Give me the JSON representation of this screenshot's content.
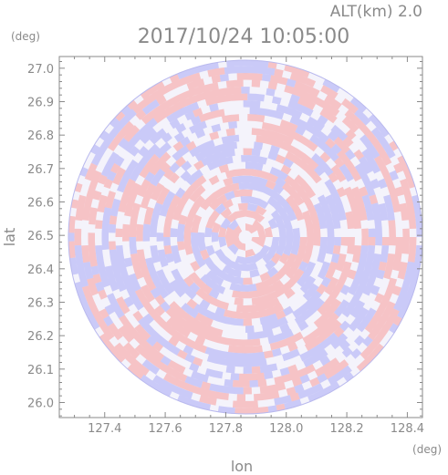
{
  "header": {
    "altitude_label": "ALT(km) 2.0",
    "timestamp": "2017/10/24 10:05:00"
  },
  "chart_data": {
    "type": "heatmap",
    "title": "2017/10/24 10:05:00",
    "subtitle": "ALT(km) 2.0",
    "xlabel": "lon",
    "ylabel": "lat",
    "x_unit": "(deg)",
    "y_unit": "(deg)",
    "xlim": [
      127.25,
      128.45
    ],
    "ylim": [
      25.955,
      27.035
    ],
    "x_ticks": [
      "127.4",
      "127.6",
      "127.8",
      "128.0",
      "128.2",
      "128.4"
    ],
    "y_ticks": [
      "26.0",
      "26.1",
      "26.2",
      "26.3",
      "26.4",
      "26.5",
      "26.6",
      "26.7",
      "26.8",
      "26.9",
      "27.0"
    ],
    "radar_center": {
      "lon": 127.865,
      "lat": 26.495
    },
    "grid": true,
    "colors": {
      "positive": "#f7a4a4",
      "negative": "#a8a8f5",
      "axis": "#8a8a8a"
    }
  }
}
